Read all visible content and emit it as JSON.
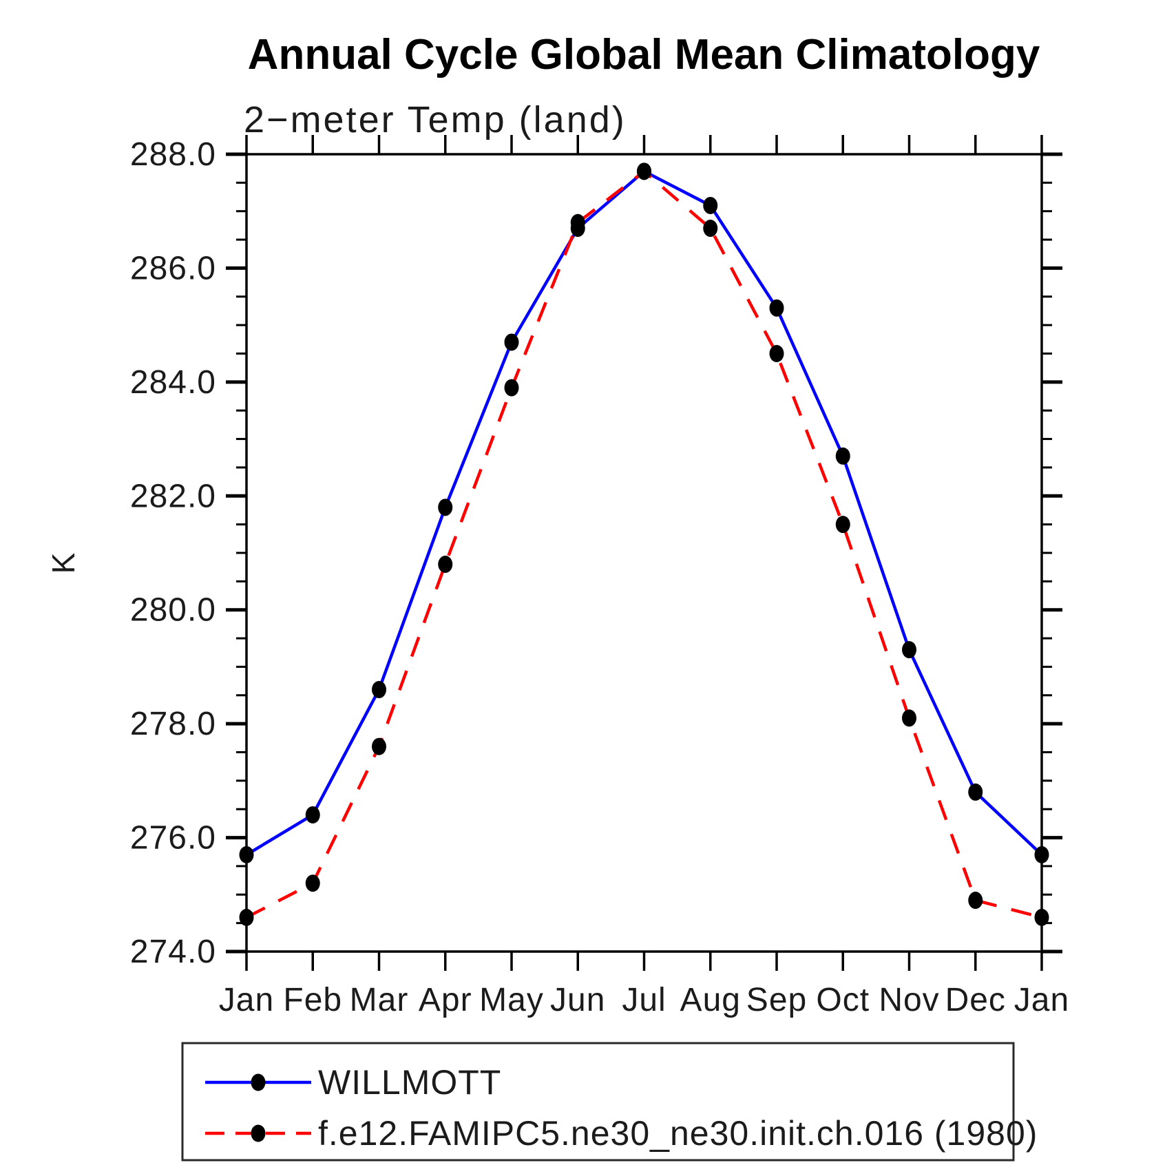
{
  "title": "Annual Cycle Global Mean Climatology",
  "subtitle": "2−meter Temp (land)",
  "y_axis_label": "K",
  "colors": {
    "obs_line": "#0000ff",
    "model_line": "#ff0000",
    "marker": "#000000",
    "axis": "#000000"
  },
  "chart_data": {
    "type": "line",
    "categories": [
      "Jan",
      "Feb",
      "Mar",
      "Apr",
      "May",
      "Jun",
      "Jul",
      "Aug",
      "Sep",
      "Oct",
      "Nov",
      "Dec",
      "Jan"
    ],
    "series": [
      {
        "name": "WILLMOTT",
        "color": "#0000ff",
        "style": "solid",
        "marker": "filled-circle",
        "values": [
          275.7,
          276.4,
          278.6,
          281.8,
          284.7,
          286.7,
          287.7,
          287.1,
          285.3,
          282.7,
          279.3,
          276.8,
          275.7
        ]
      },
      {
        "name": "f.e12.FAMIPC5.ne30_ne30.init.ch.016 (1980)",
        "color": "#ff0000",
        "style": "dashed",
        "marker": "filled-circle",
        "values": [
          274.6,
          275.2,
          277.6,
          280.8,
          283.9,
          286.8,
          287.7,
          286.7,
          284.5,
          281.5,
          278.1,
          274.9,
          274.6
        ]
      }
    ],
    "xlabel": "",
    "ylabel": "K",
    "ylim": [
      274.0,
      288.0
    ],
    "ytick_step": 2.0,
    "ytick_minor_step": 0.5,
    "ytick_labels": [
      "274.0",
      "276.0",
      "278.0",
      "280.0",
      "282.0",
      "284.0",
      "286.0",
      "288.0"
    ],
    "grid": false,
    "legend_position": "bottom"
  }
}
